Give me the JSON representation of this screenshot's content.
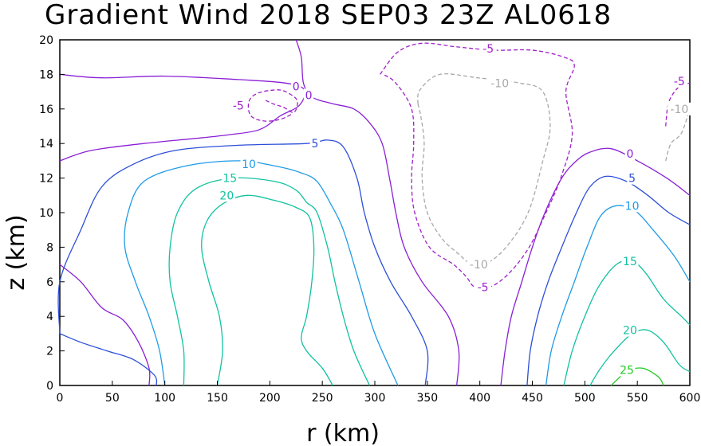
{
  "chart_data": {
    "type": "contour",
    "title": "Gradient Wind 2018 SEP03 23Z  AL0618",
    "xlabel": "r (km)",
    "ylabel": "z (km)",
    "xlim": [
      0,
      600
    ],
    "ylim": [
      0,
      20
    ],
    "x_ticks": [
      0,
      50,
      100,
      150,
      200,
      250,
      300,
      350,
      400,
      450,
      500,
      550,
      600
    ],
    "y_ticks": [
      0,
      2,
      4,
      6,
      8,
      10,
      12,
      14,
      16,
      18,
      20
    ],
    "colors": {
      "c25": "#22cc22",
      "c20": "#11c2a0",
      "c15": "#11c2a0",
      "c10": "#1e9be6",
      "c5": "#2d4fd8",
      "c0": "#8a1fd6",
      "cm5": "#a020c8",
      "cm10": "#a8a8a8"
    },
    "contours": [
      {
        "level": 0,
        "dashed": false,
        "color": "c0",
        "points": [
          [
            0,
            18
          ],
          [
            40,
            17.8
          ],
          [
            100,
            17.9
          ],
          [
            170,
            17.7
          ],
          [
            215,
            17.5
          ],
          [
            233,
            17.1
          ],
          [
            228,
            16.2
          ],
          [
            210,
            15.6
          ],
          [
            190,
            14.8
          ],
          [
            160,
            14.5
          ],
          [
            130,
            14.3
          ],
          [
            80,
            14
          ],
          [
            30,
            13.6
          ],
          [
            0,
            13
          ]
        ]
      },
      {
        "level": 0,
        "dashed": false,
        "color": "c0",
        "points": [
          [
            225,
            20
          ],
          [
            230,
            19
          ],
          [
            232,
            17.5
          ],
          [
            240,
            16.7
          ],
          [
            260,
            16.3
          ],
          [
            280,
            16
          ],
          [
            295,
            15.2
          ],
          [
            307,
            14
          ],
          [
            314,
            12
          ],
          [
            320,
            10
          ],
          [
            328,
            8
          ],
          [
            345,
            6
          ],
          [
            370,
            4
          ],
          [
            380,
            2
          ],
          [
            378,
            0
          ]
        ]
      },
      {
        "level": 0,
        "dashed": false,
        "color": "c0",
        "points": [
          [
            0,
            7
          ],
          [
            20,
            6
          ],
          [
            40,
            4.5
          ],
          [
            60,
            3.8
          ],
          [
            75,
            2.5
          ],
          [
            85,
            1
          ],
          [
            85,
            0
          ]
        ]
      },
      {
        "level": 0,
        "dashed": false,
        "color": "c0",
        "points": [
          [
            420,
            0
          ],
          [
            424,
            2
          ],
          [
            430,
            4
          ],
          [
            440,
            6
          ],
          [
            450,
            8
          ],
          [
            462,
            10
          ],
          [
            478,
            12
          ],
          [
            492,
            13
          ],
          [
            505,
            13.5
          ],
          [
            525,
            13.7
          ],
          [
            550,
            13
          ],
          [
            578,
            12
          ],
          [
            600,
            11
          ]
        ]
      },
      {
        "level": 5,
        "dashed": false,
        "color": "c5",
        "points": [
          [
            0,
            3
          ],
          [
            0,
            6
          ],
          [
            20,
            9
          ],
          [
            40,
            11.5
          ],
          [
            70,
            12.8
          ],
          [
            110,
            13.6
          ],
          [
            170,
            13.9
          ],
          [
            235,
            14
          ],
          [
            255,
            14.2
          ],
          [
            270,
            13.8
          ],
          [
            283,
            12
          ],
          [
            290,
            10
          ],
          [
            300,
            8
          ],
          [
            315,
            6
          ],
          [
            335,
            4
          ],
          [
            350,
            2
          ],
          [
            348,
            0
          ]
        ]
      },
      {
        "level": 5,
        "dashed": false,
        "color": "c5",
        "points": [
          [
            0,
            3
          ],
          [
            20,
            2.5
          ],
          [
            45,
            2
          ],
          [
            70,
            1.5
          ],
          [
            90,
            0.6
          ],
          [
            92,
            0
          ]
        ]
      },
      {
        "level": 5,
        "dashed": false,
        "color": "c5",
        "points": [
          [
            445,
            0
          ],
          [
            448,
            2
          ],
          [
            455,
            4
          ],
          [
            465,
            6
          ],
          [
            478,
            8
          ],
          [
            492,
            10
          ],
          [
            505,
            11.5
          ],
          [
            520,
            12.1
          ],
          [
            540,
            11.8
          ],
          [
            560,
            11
          ],
          [
            580,
            10
          ],
          [
            600,
            9.3
          ]
        ]
      },
      {
        "level": 10,
        "dashed": false,
        "color": "c10",
        "points": [
          [
            100,
            0
          ],
          [
            95,
            2
          ],
          [
            85,
            4
          ],
          [
            72,
            6
          ],
          [
            62,
            8
          ],
          [
            65,
            10
          ],
          [
            80,
            11.8
          ],
          [
            120,
            12.7
          ],
          [
            170,
            13
          ],
          [
            205,
            12.7
          ],
          [
            230,
            12.3
          ],
          [
            245,
            11.8
          ],
          [
            258,
            10.5
          ],
          [
            270,
            9
          ],
          [
            285,
            6
          ],
          [
            300,
            3
          ],
          [
            322,
            0
          ]
        ]
      },
      {
        "level": 10,
        "dashed": false,
        "color": "c10",
        "points": [
          [
            463,
            0
          ],
          [
            468,
            2
          ],
          [
            478,
            4
          ],
          [
            490,
            6
          ],
          [
            502,
            8
          ],
          [
            515,
            9.8
          ],
          [
            530,
            10.4
          ],
          [
            548,
            10.1
          ],
          [
            565,
            9
          ],
          [
            585,
            7.5
          ],
          [
            600,
            6
          ]
        ]
      },
      {
        "level": 15,
        "dashed": false,
        "color": "c15",
        "points": [
          [
            118,
            0
          ],
          [
            118,
            2
          ],
          [
            112,
            4
          ],
          [
            105,
            6
          ],
          [
            105,
            8
          ],
          [
            112,
            10
          ],
          [
            130,
            11.4
          ],
          [
            165,
            12
          ],
          [
            205,
            11.8
          ],
          [
            225,
            11.3
          ],
          [
            235,
            10.6
          ],
          [
            245,
            10
          ],
          [
            255,
            8
          ],
          [
            262,
            6
          ],
          [
            270,
            4
          ],
          [
            280,
            2
          ],
          [
            295,
            0
          ]
        ]
      },
      {
        "level": 15,
        "dashed": false,
        "color": "c15",
        "points": [
          [
            480,
            0
          ],
          [
            488,
            2
          ],
          [
            500,
            4
          ],
          [
            513,
            5.7
          ],
          [
            530,
            7
          ],
          [
            545,
            7.2
          ],
          [
            558,
            6.5
          ],
          [
            575,
            5
          ],
          [
            592,
            4
          ],
          [
            600,
            3.5
          ]
        ]
      },
      {
        "level": 20,
        "dashed": false,
        "color": "c20",
        "points": [
          [
            150,
            0
          ],
          [
            155,
            2
          ],
          [
            152,
            4
          ],
          [
            142,
            6
          ],
          [
            135,
            8
          ],
          [
            140,
            9.5
          ],
          [
            155,
            10.5
          ],
          [
            178,
            11
          ],
          [
            205,
            10.7
          ],
          [
            225,
            10.3
          ],
          [
            238,
            9.7
          ],
          [
            242,
            8
          ],
          [
            240,
            6
          ],
          [
            235,
            4
          ],
          [
            230,
            2.8
          ],
          [
            235,
            2
          ],
          [
            250,
            1
          ],
          [
            260,
            0
          ]
        ]
      },
      {
        "level": 20,
        "dashed": false,
        "color": "c20",
        "points": [
          [
            505,
            0
          ],
          [
            515,
            1
          ],
          [
            528,
            2
          ],
          [
            545,
            3
          ],
          [
            560,
            3.2
          ],
          [
            575,
            2.5
          ],
          [
            590,
            1.2
          ],
          [
            600,
            0.8
          ]
        ]
      },
      {
        "level": 25,
        "dashed": false,
        "color": "c25",
        "points": [
          [
            525,
            0
          ],
          [
            540,
            0.8
          ],
          [
            555,
            1
          ],
          [
            570,
            0.5
          ],
          [
            575,
            0
          ]
        ]
      },
      {
        "level": -5,
        "dashed": true,
        "color": "cm5",
        "points": [
          [
            196,
            16.5
          ],
          [
            203,
            16.3
          ],
          [
            213,
            16.1
          ],
          [
            223,
            15.8
          ],
          [
            226,
            16.5
          ],
          [
            215,
            17
          ],
          [
            205,
            17.1
          ],
          [
            188,
            16.9
          ],
          [
            180,
            16.4
          ],
          [
            182,
            15.6
          ],
          [
            195,
            15.3
          ],
          [
            210,
            15.4
          ],
          [
            221,
            15.7
          ]
        ]
      },
      {
        "level": -5,
        "dashed": true,
        "color": "cm5",
        "points": [
          [
            305,
            18
          ],
          [
            322,
            19.3
          ],
          [
            345,
            19.8
          ],
          [
            377,
            19.6
          ],
          [
            413,
            19.4
          ],
          [
            450,
            19.4
          ],
          [
            480,
            19
          ],
          [
            490,
            18.5
          ],
          [
            482,
            17
          ],
          [
            488,
            14.5
          ],
          [
            477,
            12
          ],
          [
            463,
            10
          ],
          [
            447,
            8
          ],
          [
            428,
            6.5
          ],
          [
            410,
            5.7
          ],
          [
            395,
            5.7
          ],
          [
            387,
            6.3
          ],
          [
            375,
            7
          ],
          [
            352,
            8
          ],
          [
            338,
            10
          ],
          [
            335,
            12
          ],
          [
            337,
            14
          ],
          [
            335,
            16
          ],
          [
            320,
            17.5
          ],
          [
            308,
            18
          ]
        ]
      },
      {
        "level": -5,
        "dashed": true,
        "color": "cm5",
        "points": [
          [
            577,
            15
          ],
          [
            580,
            16.4
          ],
          [
            590,
            17.3
          ],
          [
            600,
            17.5
          ]
        ]
      },
      {
        "level": -10,
        "dashed": true,
        "color": "cm10",
        "points": [
          [
            341,
            16.3
          ],
          [
            343,
            17.1
          ],
          [
            362,
            18
          ],
          [
            398,
            17.8
          ],
          [
            438,
            17.5
          ],
          [
            460,
            17
          ],
          [
            467,
            15
          ],
          [
            460,
            13
          ],
          [
            446,
            10
          ],
          [
            425,
            8
          ],
          [
            405,
            7
          ],
          [
            392,
            7
          ],
          [
            380,
            7.6
          ],
          [
            364,
            8.5
          ],
          [
            350,
            10
          ],
          [
            345,
            12
          ],
          [
            347,
            14
          ],
          [
            344,
            15.5
          ],
          [
            341,
            16.3
          ]
        ]
      },
      {
        "level": -10,
        "dashed": true,
        "color": "cm10",
        "points": [
          [
            577,
            13
          ],
          [
            582,
            14
          ],
          [
            592,
            14.6
          ],
          [
            600,
            16
          ]
        ]
      }
    ],
    "contour_labels": [
      {
        "text": "0",
        "r": 225,
        "z": 17.3,
        "color": "c0"
      },
      {
        "text": "0",
        "r": 237,
        "z": 16.8,
        "color": "c0"
      },
      {
        "text": "0",
        "r": 543,
        "z": 13.4,
        "color": "c0"
      },
      {
        "text": "-5",
        "r": 170,
        "z": 16.2,
        "color": "cm5"
      },
      {
        "text": "-5",
        "r": 408,
        "z": 19.5,
        "color": "cm5"
      },
      {
        "text": "-5",
        "r": 403,
        "z": 5.7,
        "color": "cm5"
      },
      {
        "text": "-5",
        "r": 590,
        "z": 17.6,
        "color": "cm5"
      },
      {
        "text": "-10",
        "r": 419,
        "z": 17.5,
        "color": "cm10"
      },
      {
        "text": "-10",
        "r": 399,
        "z": 7,
        "color": "cm10"
      },
      {
        "text": "-10",
        "r": 590,
        "z": 16,
        "color": "cm10"
      },
      {
        "text": "5",
        "r": 243,
        "z": 14,
        "color": "c5"
      },
      {
        "text": "5",
        "r": 545,
        "z": 12,
        "color": "c5"
      },
      {
        "text": "10",
        "r": 180,
        "z": 12.8,
        "color": "c10"
      },
      {
        "text": "10",
        "r": 545,
        "z": 10.4,
        "color": "c10"
      },
      {
        "text": "15",
        "r": 162,
        "z": 12,
        "color": "c15"
      },
      {
        "text": "15",
        "r": 543,
        "z": 7.2,
        "color": "c15"
      },
      {
        "text": "20",
        "r": 159,
        "z": 11,
        "color": "c20"
      },
      {
        "text": "20",
        "r": 543,
        "z": 3.2,
        "color": "c20"
      },
      {
        "text": "25",
        "r": 540,
        "z": 0.9,
        "color": "c25"
      }
    ]
  }
}
